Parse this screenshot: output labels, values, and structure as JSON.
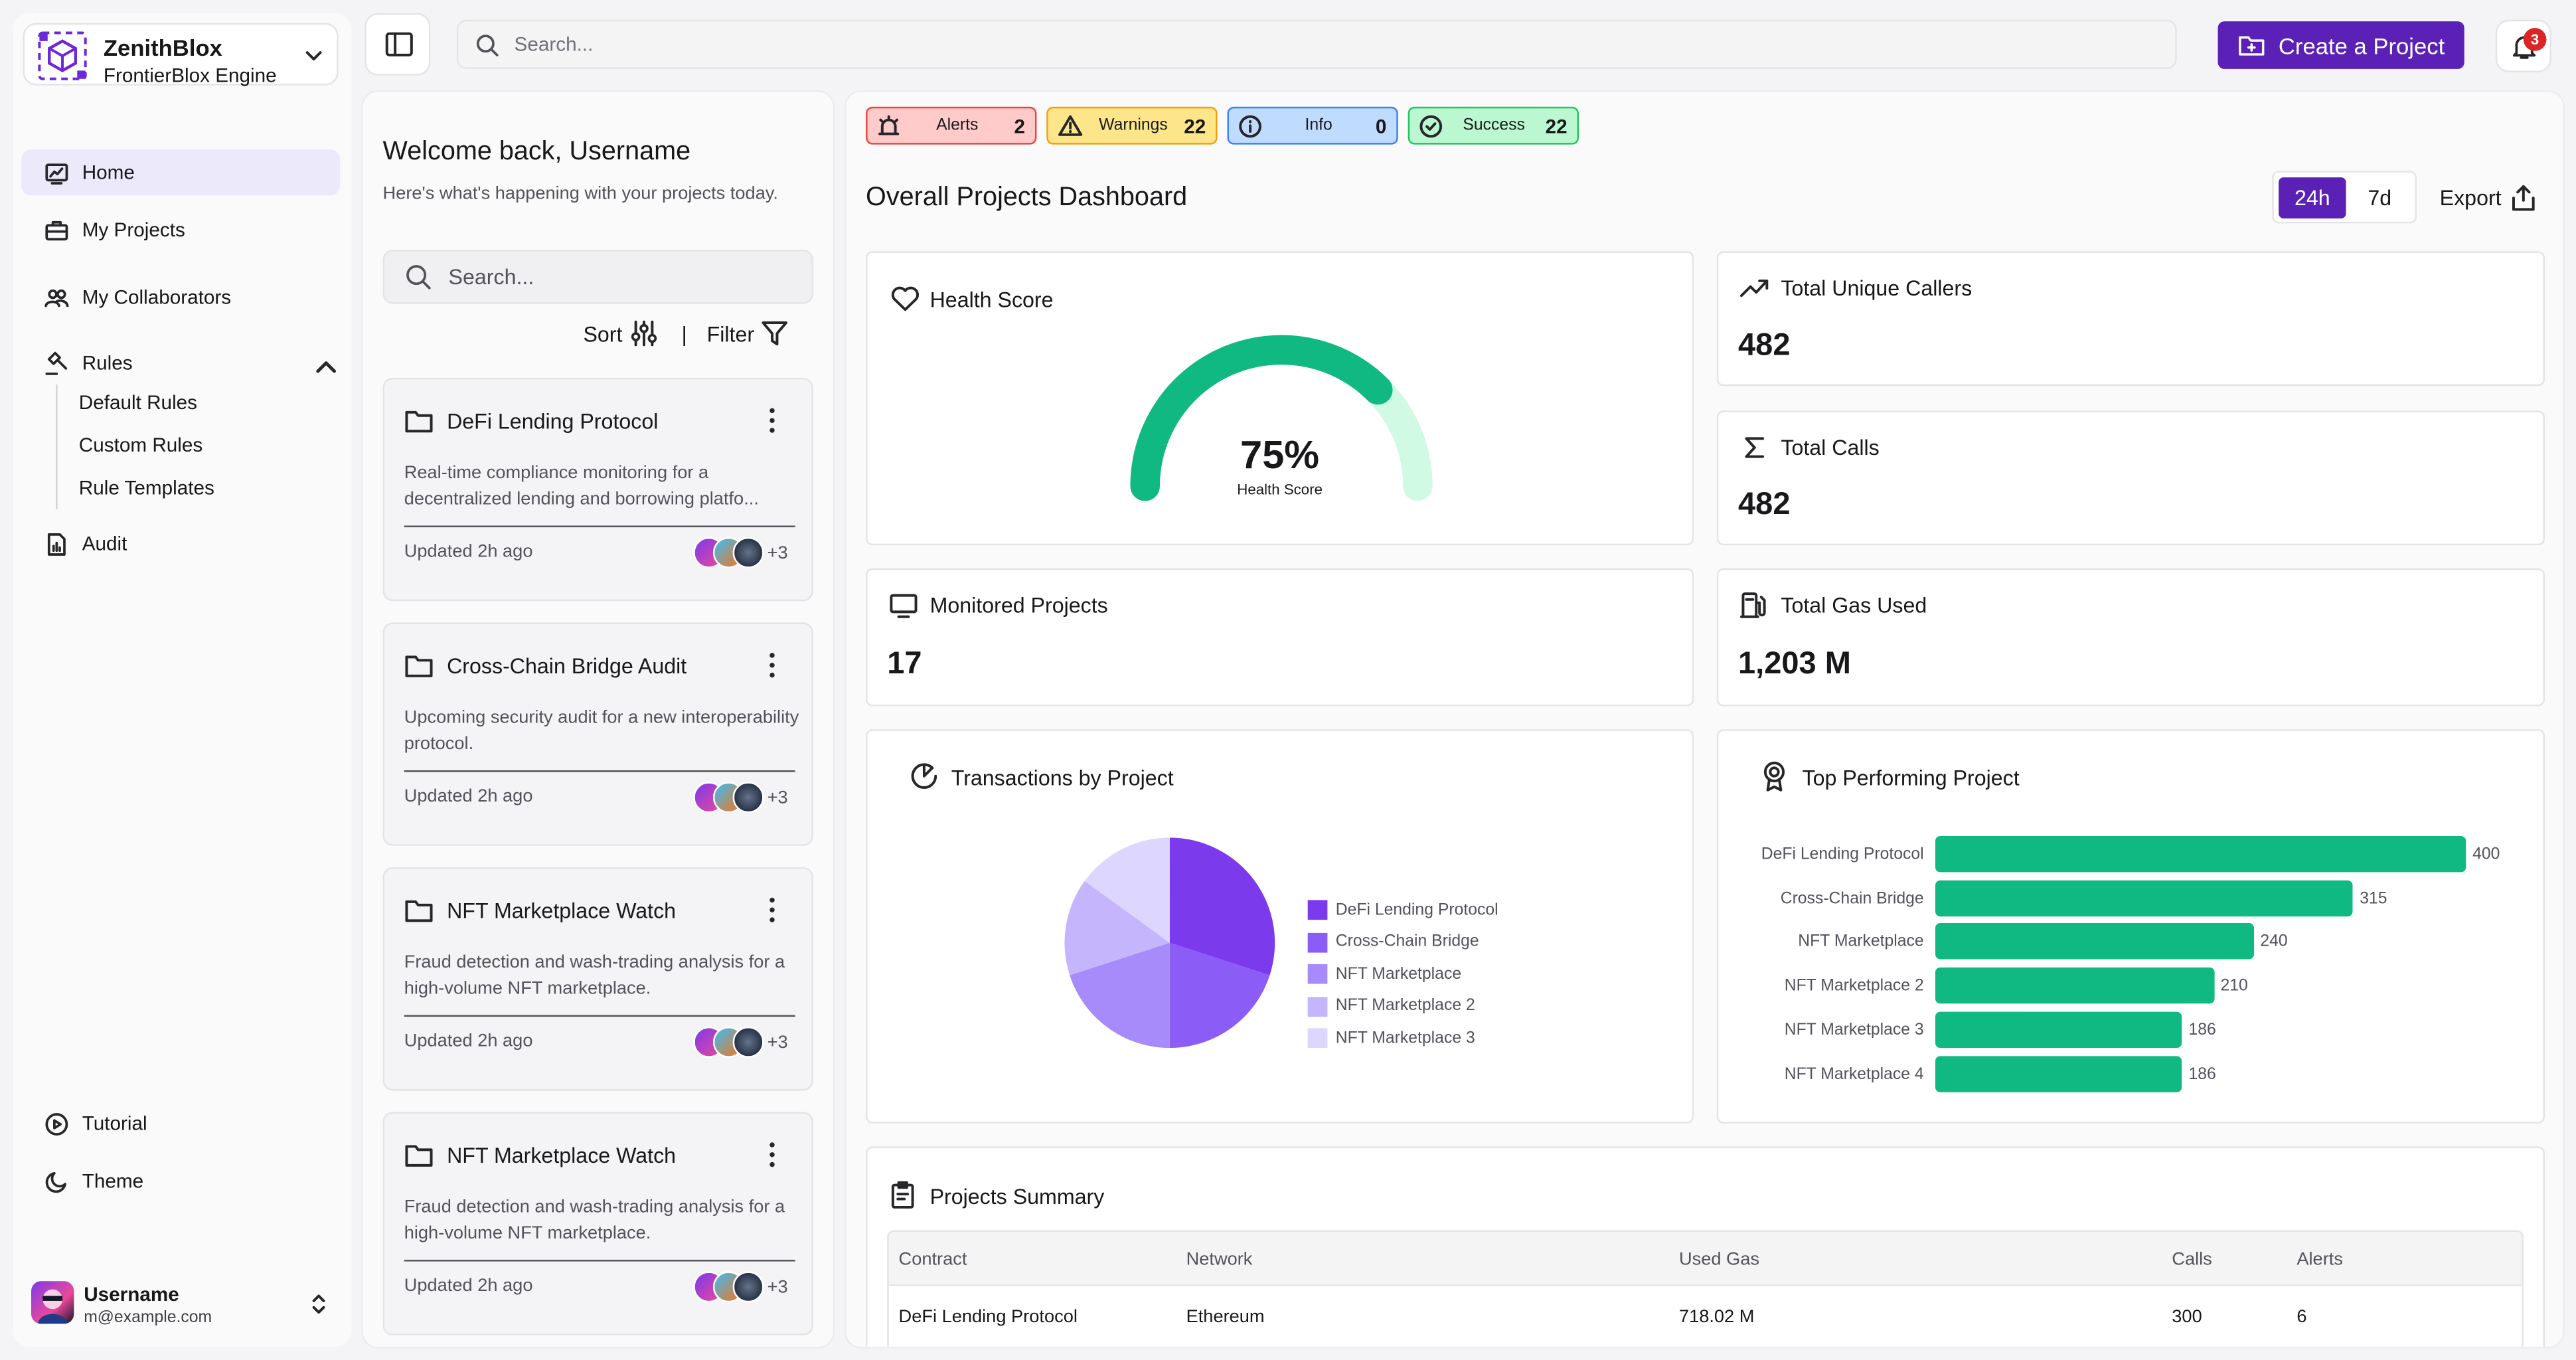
{
  "brand": {
    "name": "ZenithBlox",
    "engine": "FrontierBlox Engine"
  },
  "sidebar": {
    "home": "Home",
    "projects": "My Projects",
    "collaborators": "My Collaborators",
    "rules": "Rules",
    "rule_items": [
      "Default Rules",
      "Custom Rules",
      "Rule Templates"
    ],
    "audit": "Audit",
    "tutorial": "Tutorial",
    "theme": "Theme",
    "user": {
      "name": "Username",
      "email": "m@example.com"
    }
  },
  "topbar": {
    "search_placeholder": "Search...",
    "create_label": "Create a Project",
    "notif_count": "3"
  },
  "list": {
    "welcome": "Welcome back, Username",
    "subtitle": "Here's what's happening with your projects today.",
    "search_placeholder": "Search...",
    "sort": "Sort",
    "sep": "|",
    "filter": "Filter",
    "cards": [
      {
        "title": "DeFi Lending Protocol",
        "desc": "Real-time compliance monitoring for a decentralized lending and borrowing platfo...",
        "updated": "Updated 2h ago",
        "more": "+3"
      },
      {
        "title": "Cross-Chain Bridge Audit",
        "desc": "Upcoming security audit for a new interoperability protocol.",
        "updated": "Updated 2h ago",
        "more": "+3"
      },
      {
        "title": "NFT Marketplace Watch",
        "desc": "Fraud detection and wash-trading analysis for a high-volume NFT marketplace.",
        "updated": "Updated 2h ago",
        "more": "+3"
      },
      {
        "title": "NFT Marketplace Watch",
        "desc": "Fraud detection and wash-trading analysis for a high-volume NFT marketplace.",
        "updated": "Updated 2h ago",
        "more": "+3"
      }
    ]
  },
  "status": {
    "alerts": {
      "label": "Alerts",
      "count": "2",
      "color": "#fecaca"
    },
    "warnings": {
      "label": "Warnings",
      "count": "22",
      "color": "#fde68a"
    },
    "info": {
      "label": "Info",
      "count": "0",
      "color": "#bfdbfe"
    },
    "success": {
      "label": "Success",
      "count": "22",
      "color": "#bbf7d0"
    }
  },
  "dashboard": {
    "title": "Overall Projects Dashboard",
    "range": {
      "a": "24h",
      "b": "7d"
    },
    "export": "Export",
    "health": {
      "title": "Health Score",
      "value": "75%",
      "label": "Health Score",
      "percent": 75
    },
    "kpis": {
      "callers": {
        "title": "Total Unique Callers",
        "value": "482"
      },
      "calls": {
        "title": "Total Calls",
        "value": "482"
      },
      "monitored": {
        "title": "Monitored Projects",
        "value": "17"
      },
      "gas": {
        "title": "Total Gas Used",
        "value": "1,203 M"
      }
    },
    "tx_title": "Transactions by Project",
    "top_title": "Top Performing Project",
    "summary": {
      "title": "Projects Summary",
      "headers": [
        "Contract",
        "Network",
        "Used Gas",
        "Calls",
        "Alerts"
      ],
      "rows": [
        [
          "DeFi Lending Protocol",
          "Ethereum",
          "718.02 M",
          "300",
          "6"
        ]
      ]
    }
  },
  "chart_data": [
    {
      "type": "pie",
      "title": "Transactions by Project",
      "categories": [
        "DeFi Lending Protocol",
        "Cross-Chain Bridge",
        "NFT Marketplace",
        "NFT Marketplace 2",
        "NFT Marketplace 3"
      ],
      "values": [
        30,
        20,
        20,
        15,
        15
      ],
      "colors": [
        "#7c3aed",
        "#8b5cf6",
        "#a78bfa",
        "#c4b5fd",
        "#ddd6fe"
      ],
      "legend": "right"
    },
    {
      "type": "bar",
      "orientation": "horizontal",
      "title": "Top Performing Project",
      "categories": [
        "DeFi Lending Protocol",
        "Cross-Chain Bridge",
        "NFT Marketplace",
        "NFT Marketplace 2",
        "NFT Marketplace 3",
        "NFT Marketplace 4"
      ],
      "values": [
        400,
        315,
        240,
        210,
        186,
        186
      ],
      "color": "#10b981"
    }
  ]
}
